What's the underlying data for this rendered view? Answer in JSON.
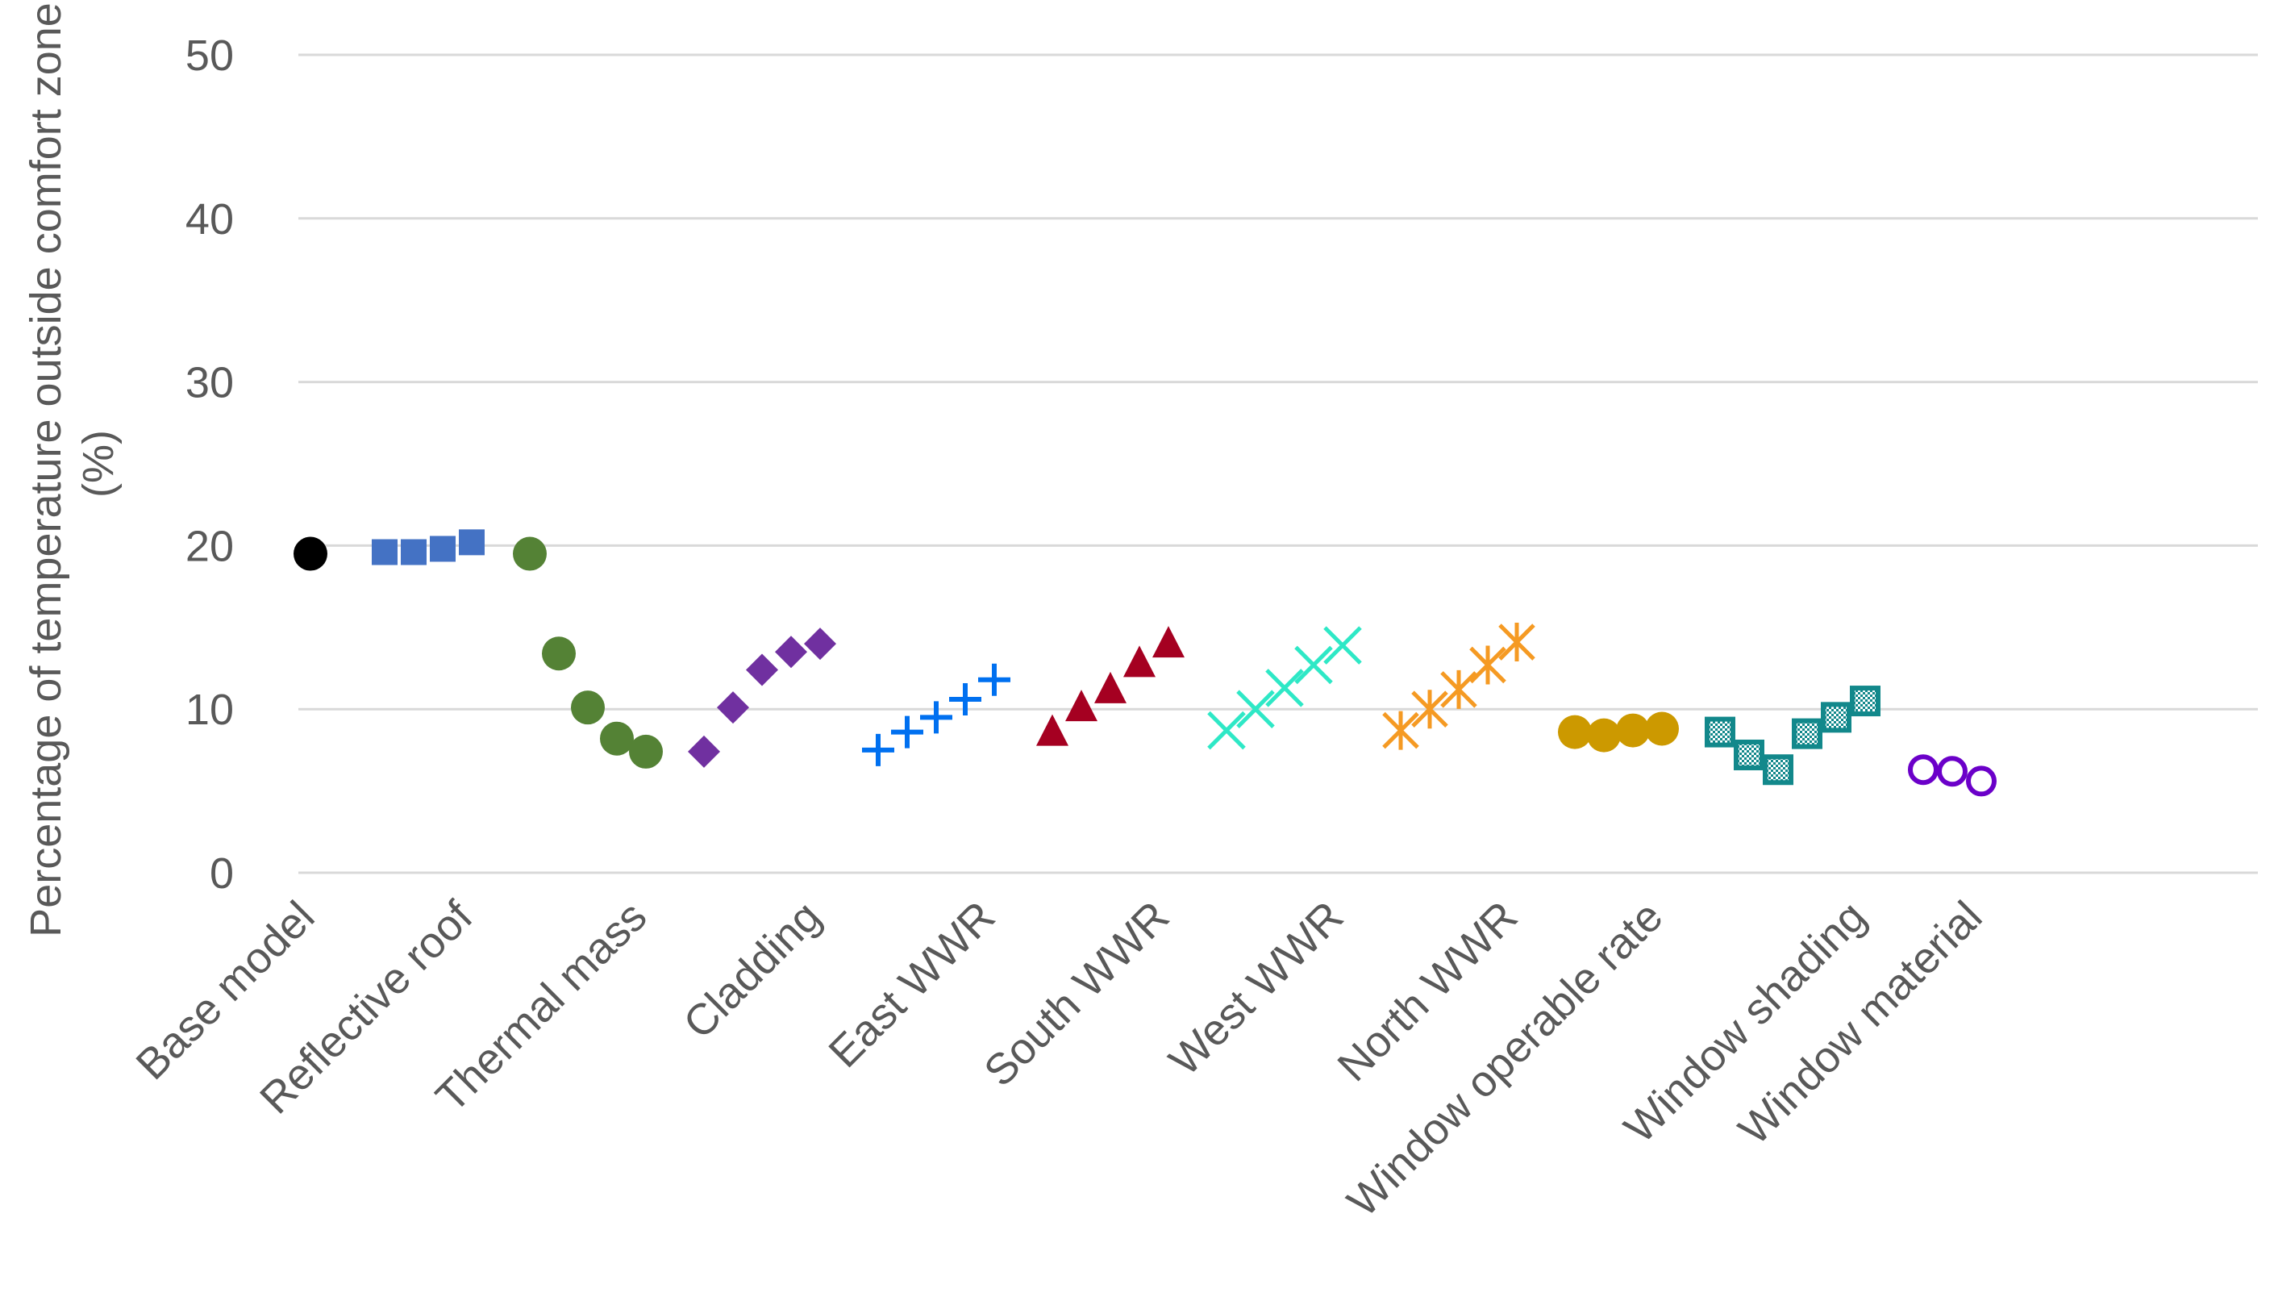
{
  "chart_data": {
    "type": "scatter",
    "ylabel": [
      "Percentage of temperature outside comfort zone",
      "(%)"
    ],
    "ylim": [
      0,
      50
    ],
    "yticks": [
      0,
      10,
      20,
      30,
      40,
      50
    ],
    "grid": true,
    "legend": "none",
    "categories": [
      "Base model",
      "Reflective roof",
      "Thermal mass",
      "Cladding",
      "East WWR",
      "South WWR",
      "West WWR",
      "North WWR",
      "Window operable rate",
      "Window shading",
      "Window material"
    ],
    "series": [
      {
        "marker": "circle",
        "color": "#000000",
        "values": [
          19.5
        ]
      },
      {
        "marker": "square",
        "color": "#4472c4",
        "values": [
          19.6,
          19.6,
          19.8,
          20.2
        ]
      },
      {
        "marker": "circle",
        "color": "#548235",
        "values": [
          19.5,
          13.4,
          10.1,
          8.2,
          7.4
        ]
      },
      {
        "marker": "diamond",
        "color": "#7030a0",
        "values": [
          7.4,
          10.1,
          12.4,
          13.5,
          14.0
        ]
      },
      {
        "marker": "plus",
        "color": "#0070f0",
        "values": [
          7.5,
          8.6,
          9.5,
          10.6,
          11.8
        ]
      },
      {
        "marker": "triangle",
        "color": "#a50021",
        "values": [
          8.6,
          10.1,
          11.2,
          12.8,
          14.0
        ]
      },
      {
        "marker": "x",
        "color": "#2ee8c6",
        "values": [
          8.7,
          10.0,
          11.3,
          12.7,
          13.9
        ]
      },
      {
        "marker": "asterisk",
        "color": "#f59a23",
        "values": [
          8.7,
          10.0,
          11.2,
          12.7,
          14.1
        ]
      },
      {
        "marker": "circle",
        "color": "#cc9900",
        "values": [
          8.6,
          8.4,
          8.7,
          8.8
        ]
      },
      {
        "marker": "checkered-square",
        "color": "#12888b",
        "values": [
          8.6,
          7.2,
          6.3,
          8.5,
          9.5,
          10.5
        ]
      },
      {
        "marker": "open-circle",
        "color": "#6b00c9",
        "values": [
          6.3,
          6.2,
          5.6
        ]
      }
    ]
  }
}
